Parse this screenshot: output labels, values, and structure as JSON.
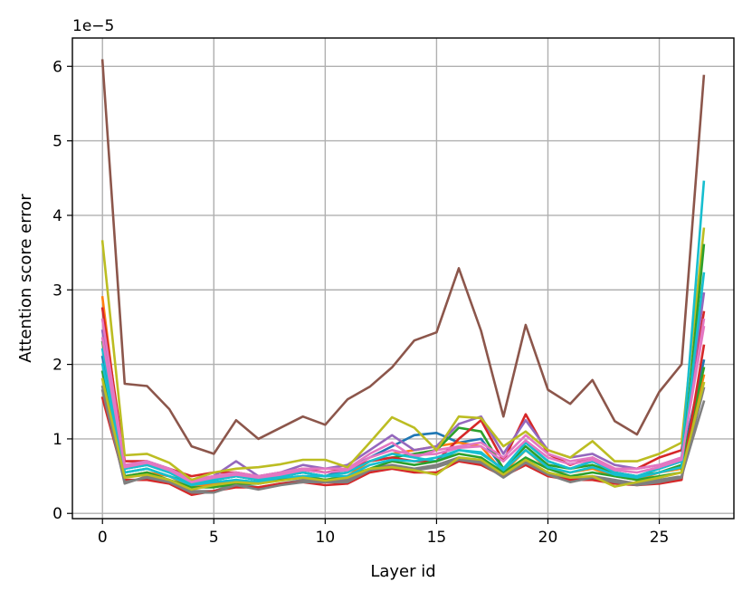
{
  "chart_data": {
    "type": "line",
    "title": "",
    "xlabel": "Layer id",
    "ylabel": "Attention score error",
    "y_offset_label": "1e−5",
    "y_scale_factor": 1e-05,
    "xlim": [
      -1.35,
      28.35
    ],
    "ylim": [
      -0.07,
      6.38
    ],
    "x_ticks": [
      0,
      5,
      10,
      15,
      20,
      25
    ],
    "y_ticks": [
      0,
      1,
      2,
      3,
      4,
      5,
      6
    ],
    "grid": true,
    "legend": "none",
    "x": [
      0,
      1,
      2,
      3,
      4,
      5,
      6,
      7,
      8,
      9,
      10,
      11,
      12,
      13,
      14,
      15,
      16,
      17,
      18,
      19,
      20,
      21,
      22,
      23,
      24,
      25,
      26,
      27
    ],
    "series": [
      {
        "color": "#1f77b4",
        "values": [
          2.1,
          0.6,
          0.65,
          0.55,
          0.4,
          0.45,
          0.5,
          0.45,
          0.5,
          0.55,
          0.5,
          0.6,
          0.75,
          0.9,
          1.05,
          1.08,
          0.95,
          1.0,
          0.6,
          0.95,
          0.7,
          0.6,
          0.7,
          0.55,
          0.5,
          0.6,
          0.7,
          2.05
        ]
      },
      {
        "color": "#ff7f0e",
        "values": [
          2.9,
          0.5,
          0.55,
          0.5,
          0.35,
          0.4,
          0.45,
          0.4,
          0.45,
          0.5,
          0.45,
          0.5,
          0.7,
          0.8,
          0.85,
          0.9,
          0.95,
          0.9,
          0.55,
          0.85,
          0.6,
          0.55,
          0.6,
          0.5,
          0.45,
          0.55,
          0.6,
          1.85
        ]
      },
      {
        "color": "#2ca02c",
        "values": [
          2.3,
          0.55,
          0.6,
          0.5,
          0.4,
          0.45,
          0.5,
          0.45,
          0.5,
          0.55,
          0.5,
          0.55,
          0.7,
          0.75,
          0.8,
          0.85,
          1.15,
          1.1,
          0.6,
          0.9,
          0.65,
          0.6,
          0.65,
          0.55,
          0.5,
          0.55,
          0.65,
          1.95
        ]
      },
      {
        "color": "#d62728",
        "values": [
          2.75,
          0.7,
          0.7,
          0.6,
          0.5,
          0.55,
          0.55,
          0.5,
          0.55,
          0.6,
          0.55,
          0.6,
          0.7,
          0.75,
          0.7,
          0.7,
          1.0,
          1.25,
          0.7,
          1.33,
          0.8,
          0.65,
          0.75,
          0.6,
          0.6,
          0.75,
          0.85,
          2.7
        ]
      },
      {
        "color": "#9467bd",
        "values": [
          2.45,
          0.6,
          0.7,
          0.6,
          0.45,
          0.5,
          0.7,
          0.5,
          0.55,
          0.65,
          0.6,
          0.65,
          0.85,
          1.05,
          0.85,
          0.9,
          1.2,
          1.3,
          0.8,
          1.25,
          0.85,
          0.75,
          0.8,
          0.65,
          0.6,
          0.65,
          0.75,
          2.95
        ]
      },
      {
        "color": "#8c564b",
        "values": [
          6.08,
          1.74,
          1.71,
          1.4,
          0.9,
          0.8,
          1.25,
          1.0,
          1.15,
          1.3,
          1.19,
          1.53,
          1.7,
          1.96,
          2.32,
          2.43,
          3.29,
          2.45,
          1.3,
          2.53,
          1.66,
          1.47,
          1.79,
          1.24,
          1.06,
          1.63,
          2.0,
          5.87
        ]
      },
      {
        "color": "#e377c2",
        "values": [
          2.6,
          0.65,
          0.7,
          0.6,
          0.45,
          0.5,
          0.55,
          0.5,
          0.55,
          0.6,
          0.6,
          0.6,
          0.8,
          0.95,
          0.75,
          0.85,
          0.9,
          0.95,
          0.75,
          1.05,
          0.8,
          0.7,
          0.75,
          0.6,
          0.6,
          0.65,
          0.75,
          2.5
        ]
      },
      {
        "color": "#7f7f7f",
        "values": [
          1.7,
          0.4,
          0.5,
          0.45,
          0.3,
          0.3,
          0.4,
          0.35,
          0.4,
          0.45,
          0.45,
          0.45,
          0.6,
          0.65,
          0.6,
          0.65,
          0.75,
          0.7,
          0.5,
          0.7,
          0.55,
          0.45,
          0.5,
          0.45,
          0.4,
          0.45,
          0.5,
          1.5
        ]
      },
      {
        "color": "#bcbd22",
        "values": [
          3.65,
          0.78,
          0.8,
          0.68,
          0.45,
          0.55,
          0.6,
          0.62,
          0.66,
          0.72,
          0.72,
          0.62,
          0.95,
          1.29,
          1.15,
          0.85,
          1.3,
          1.28,
          0.9,
          1.1,
          0.85,
          0.75,
          0.97,
          0.7,
          0.7,
          0.8,
          0.95,
          3.82
        ]
      },
      {
        "color": "#17becf",
        "values": [
          2.2,
          0.6,
          0.65,
          0.55,
          0.4,
          0.45,
          0.5,
          0.45,
          0.5,
          0.55,
          0.5,
          0.55,
          0.7,
          0.8,
          0.75,
          0.7,
          0.85,
          0.8,
          0.6,
          0.95,
          0.7,
          0.6,
          0.7,
          0.55,
          0.5,
          0.6,
          0.7,
          4.45
        ]
      },
      {
        "color": "#d62728",
        "values": [
          1.55,
          0.45,
          0.45,
          0.4,
          0.25,
          0.3,
          0.35,
          0.35,
          0.4,
          0.42,
          0.38,
          0.4,
          0.55,
          0.6,
          0.55,
          0.55,
          0.7,
          0.65,
          0.5,
          0.65,
          0.5,
          0.45,
          0.45,
          0.4,
          0.38,
          0.4,
          0.45,
          2.25
        ]
      },
      {
        "color": "#2ca02c",
        "values": [
          1.9,
          0.5,
          0.55,
          0.45,
          0.35,
          0.35,
          0.4,
          0.4,
          0.45,
          0.5,
          0.45,
          0.5,
          0.6,
          0.7,
          0.65,
          0.7,
          0.8,
          0.75,
          0.55,
          0.75,
          0.6,
          0.5,
          0.55,
          0.5,
          0.45,
          0.5,
          0.55,
          3.6
        ]
      },
      {
        "color": "#17becf",
        "values": [
          2.0,
          0.55,
          0.6,
          0.5,
          0.38,
          0.42,
          0.45,
          0.42,
          0.48,
          0.5,
          0.5,
          0.5,
          0.65,
          0.72,
          0.7,
          0.75,
          0.85,
          0.82,
          0.58,
          0.85,
          0.62,
          0.55,
          0.62,
          0.52,
          0.48,
          0.55,
          0.62,
          3.22
        ]
      },
      {
        "color": "#e377c2",
        "values": [
          2.35,
          0.62,
          0.68,
          0.58,
          0.42,
          0.48,
          0.52,
          0.48,
          0.52,
          0.58,
          0.55,
          0.58,
          0.75,
          0.85,
          0.78,
          0.8,
          0.88,
          0.9,
          0.7,
          0.98,
          0.75,
          0.66,
          0.72,
          0.58,
          0.55,
          0.62,
          0.72,
          2.6
        ]
      },
      {
        "color": "#7f7f7f",
        "values": [
          1.65,
          0.42,
          0.48,
          0.42,
          0.28,
          0.28,
          0.38,
          0.32,
          0.38,
          0.42,
          0.42,
          0.42,
          0.58,
          0.62,
          0.58,
          0.62,
          0.72,
          0.68,
          0.48,
          0.68,
          0.52,
          0.42,
          0.48,
          0.42,
          0.38,
          0.42,
          0.48,
          1.68
        ]
      },
      {
        "color": "#bcbd22",
        "values": [
          1.8,
          0.48,
          0.52,
          0.45,
          0.32,
          0.38,
          0.42,
          0.4,
          0.44,
          0.48,
          0.44,
          0.48,
          0.6,
          0.62,
          0.58,
          0.52,
          0.75,
          0.72,
          0.52,
          0.72,
          0.55,
          0.48,
          0.5,
          0.36,
          0.42,
          0.48,
          0.55,
          1.75
        ]
      }
    ]
  }
}
